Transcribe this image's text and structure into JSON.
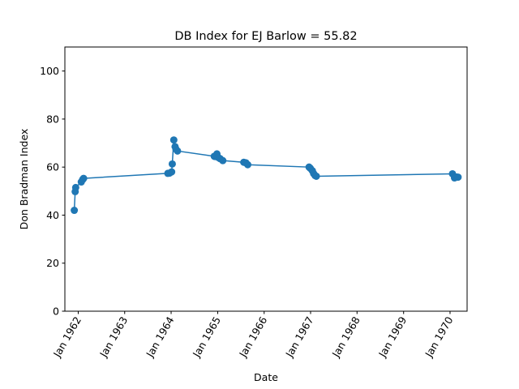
{
  "chart_data": {
    "type": "line",
    "title": "DB Index for EJ Barlow = 55.82",
    "xlabel": "Date",
    "ylabel": "Don Bradman Index",
    "ylim": [
      0,
      110
    ],
    "xlim": [
      "1961-09-18",
      "1970-05-15"
    ],
    "yticks": [
      0,
      20,
      40,
      60,
      80,
      100
    ],
    "xticks": [
      {
        "date": "1962-01-01",
        "label": "Jan 1962"
      },
      {
        "date": "1963-01-01",
        "label": "Jan 1963"
      },
      {
        "date": "1964-01-01",
        "label": "Jan 1964"
      },
      {
        "date": "1965-01-01",
        "label": "Jan 1965"
      },
      {
        "date": "1966-01-01",
        "label": "Jan 1966"
      },
      {
        "date": "1967-01-01",
        "label": "Jan 1967"
      },
      {
        "date": "1968-01-01",
        "label": "Jan 1968"
      },
      {
        "date": "1969-01-01",
        "label": "Jan 1969"
      },
      {
        "date": "1970-01-01",
        "label": "Jan 1970"
      }
    ],
    "grid": false,
    "marker": "circle",
    "series": [
      {
        "name": "",
        "color": "#1f77b4",
        "x": [
          "1961-12-01",
          "1961-12-08",
          "1961-12-12",
          "1962-01-25",
          "1962-02-05",
          "1962-02-12",
          "1963-12-06",
          "1963-12-20",
          "1964-01-05",
          "1964-01-10",
          "1964-01-22",
          "1964-02-01",
          "1964-02-08",
          "1964-02-20",
          "1964-12-05",
          "1964-12-12",
          "1964-12-26",
          "1965-01-05",
          "1965-01-20",
          "1965-02-10",
          "1965-07-25",
          "1965-08-10",
          "1965-08-25",
          "1966-12-20",
          "1966-12-30",
          "1967-01-15",
          "1967-01-25",
          "1967-02-05",
          "1967-02-15",
          "1970-01-20",
          "1970-02-05",
          "1970-02-20",
          "1970-03-05"
        ],
        "values": [
          42.0,
          49.8,
          51.5,
          53.8,
          54.8,
          55.3,
          57.4,
          57.5,
          58.0,
          61.3,
          71.3,
          68.5,
          67.5,
          66.7,
          64.5,
          64.4,
          65.5,
          64.0,
          63.5,
          62.7,
          62.0,
          61.8,
          61.0,
          60.0,
          59.5,
          58.5,
          57.3,
          56.5,
          56.2,
          57.2,
          55.5,
          55.9,
          55.82
        ]
      }
    ]
  }
}
